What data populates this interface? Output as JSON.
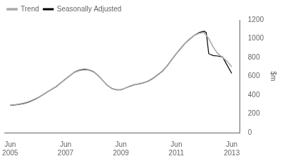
{
  "chart_data": {
    "type": "line",
    "ylabel": "$m",
    "xlim": [
      2005.3,
      2013.8
    ],
    "xticks": [
      {
        "value": 2005.5,
        "label": "Jun\n2005"
      },
      {
        "value": 2007.5,
        "label": "Jun\n2007"
      },
      {
        "value": 2009.5,
        "label": "Jun\n2009"
      },
      {
        "value": 2011.5,
        "label": "Jun\n2011"
      },
      {
        "value": 2013.5,
        "label": "Jun\n2013"
      }
    ],
    "ylim": [
      0,
      1200
    ],
    "yticks": [
      0,
      200,
      400,
      600,
      800,
      1000,
      1200
    ],
    "grid": false,
    "legend": "upper left",
    "series": [
      {
        "name": "Trend",
        "color": "#aaaaaa",
        "x": [
          2005.5,
          2005.67,
          2005.83,
          2006.0,
          2006.17,
          2006.33,
          2006.5,
          2006.67,
          2006.83,
          2007.0,
          2007.17,
          2007.33,
          2007.5,
          2007.67,
          2007.83,
          2008.0,
          2008.17,
          2008.33,
          2008.5,
          2008.67,
          2008.83,
          2009.0,
          2009.17,
          2009.33,
          2009.5,
          2009.67,
          2009.83,
          2010.0,
          2010.17,
          2010.33,
          2010.5,
          2010.67,
          2010.83,
          2011.0,
          2011.17,
          2011.33,
          2011.5,
          2011.67,
          2011.83,
          2012.0,
          2012.17,
          2012.33,
          2012.5,
          2012.67,
          2012.83,
          2013.0,
          2013.17,
          2013.33,
          2013.5
        ],
        "values": [
          292,
          298,
          305,
          315,
          330,
          350,
          373,
          402,
          432,
          462,
          493,
          532,
          572,
          610,
          642,
          660,
          668,
          665,
          648,
          608,
          558,
          505,
          472,
          458,
          458,
          475,
          493,
          510,
          522,
          533,
          553,
          583,
          618,
          658,
          713,
          778,
          843,
          902,
          957,
          1002,
          1038,
          1058,
          1065,
          1000,
          910,
          840,
          800,
          760,
          700
        ]
      },
      {
        "name": "Seasonally Adjusted",
        "color": "#000000",
        "x": [
          2005.5,
          2005.67,
          2005.83,
          2006.0,
          2006.17,
          2006.33,
          2006.5,
          2006.67,
          2006.83,
          2007.0,
          2007.17,
          2007.33,
          2007.5,
          2007.67,
          2007.83,
          2008.0,
          2008.17,
          2008.33,
          2008.5,
          2008.67,
          2008.83,
          2009.0,
          2009.17,
          2009.33,
          2009.5,
          2009.67,
          2009.83,
          2010.0,
          2010.17,
          2010.33,
          2010.5,
          2010.67,
          2010.83,
          2011.0,
          2011.17,
          2011.33,
          2011.5,
          2011.67,
          2011.83,
          2012.0,
          2012.17,
          2012.33,
          2012.5,
          2012.58,
          2012.67,
          2012.75,
          2012.83,
          2013.0,
          2013.17,
          2013.33,
          2013.5
        ],
        "values": [
          290,
          295,
          300,
          310,
          325,
          345,
          370,
          400,
          430,
          460,
          490,
          530,
          570,
          610,
          645,
          665,
          675,
          670,
          650,
          610,
          560,
          505,
          470,
          455,
          455,
          475,
          495,
          510,
          520,
          530,
          550,
          580,
          615,
          655,
          710,
          775,
          840,
          900,
          955,
          1000,
          1040,
          1065,
          1080,
          1065,
          840,
          830,
          820,
          815,
          805,
          720,
          630
        ]
      }
    ]
  }
}
